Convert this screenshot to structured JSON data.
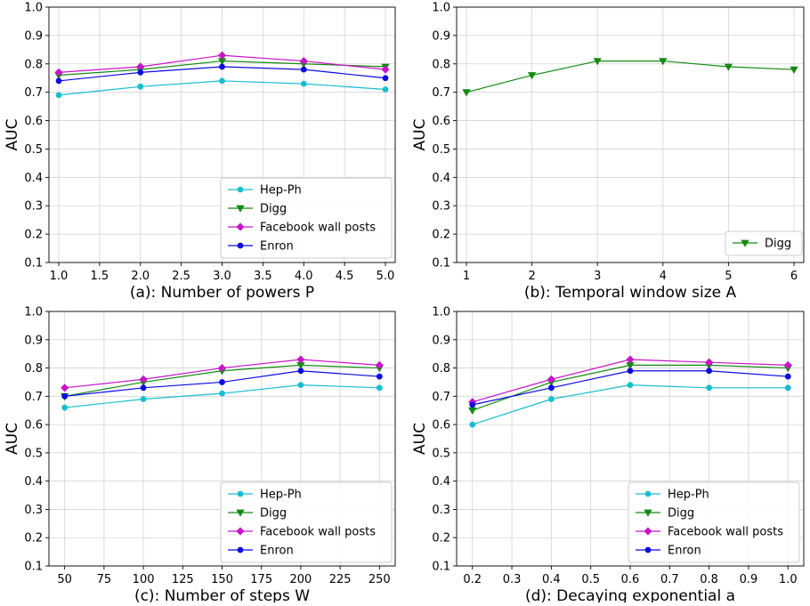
{
  "chart_data": [
    {
      "type": "line",
      "panel": "a",
      "xlabel": "(a): Number of powers P",
      "ylabel": "AUC",
      "x": [
        1.0,
        2.0,
        3.0,
        4.0,
        5.0
      ],
      "xlim": [
        0.88,
        5.12
      ],
      "ylim": [
        0.1,
        1.0
      ],
      "xticks": [
        1.0,
        1.5,
        2.0,
        2.5,
        3.0,
        3.5,
        4.0,
        4.5,
        5.0
      ],
      "xtick_labels": [
        "1.0",
        "1.5",
        "2.0",
        "2.5",
        "3.0",
        "3.5",
        "4.0",
        "4.5",
        "5.0"
      ],
      "yticks": [
        0.1,
        0.2,
        0.3,
        0.4,
        0.5,
        0.6,
        0.7,
        0.8,
        0.9,
        1.0
      ],
      "ytick_labels": [
        "0.1",
        "0.2",
        "0.3",
        "0.4",
        "0.5",
        "0.6",
        "0.7",
        "0.8",
        "0.9",
        "1.0"
      ],
      "grid": true,
      "legend_position": "lower-right",
      "series": [
        {
          "name": "Hep-Ph",
          "color": "#17becf",
          "marker": "circle",
          "values": [
            0.69,
            0.72,
            0.74,
            0.73,
            0.71
          ]
        },
        {
          "name": "Digg",
          "color": "#138a13",
          "marker": "triangle-down",
          "values": [
            0.76,
            0.78,
            0.81,
            0.8,
            0.79
          ]
        },
        {
          "name": "Facebook wall posts",
          "color": "#c715c7",
          "marker": "diamond",
          "values": [
            0.77,
            0.79,
            0.83,
            0.81,
            0.78
          ]
        },
        {
          "name": "Enron",
          "color": "#0a0ae0",
          "marker": "circle",
          "values": [
            0.74,
            0.77,
            0.79,
            0.78,
            0.75
          ]
        }
      ]
    },
    {
      "type": "line",
      "panel": "b",
      "xlabel": "(b): Temporal window size A",
      "ylabel": "AUC",
      "x": [
        1,
        2,
        3,
        4,
        5,
        6
      ],
      "xlim": [
        0.85,
        6.15
      ],
      "ylim": [
        0.1,
        1.0
      ],
      "xticks": [
        1,
        2,
        3,
        4,
        5,
        6
      ],
      "xtick_labels": [
        "1",
        "2",
        "3",
        "4",
        "5",
        "6"
      ],
      "yticks": [
        0.1,
        0.2,
        0.3,
        0.4,
        0.5,
        0.6,
        0.7,
        0.8,
        0.9,
        1.0
      ],
      "ytick_labels": [
        "0.1",
        "0.2",
        "0.3",
        "0.4",
        "0.5",
        "0.6",
        "0.7",
        "0.8",
        "0.9",
        "1.0"
      ],
      "grid": true,
      "legend_position": "lower-right",
      "series": [
        {
          "name": "Digg",
          "color": "#138a13",
          "marker": "triangle-down",
          "values": [
            0.7,
            0.76,
            0.81,
            0.81,
            0.79,
            0.78
          ]
        }
      ]
    },
    {
      "type": "line",
      "panel": "c",
      "xlabel": "(c): Number of steps W",
      "ylabel": "AUC",
      "x": [
        50,
        100,
        150,
        200,
        250
      ],
      "xlim": [
        40,
        260
      ],
      "ylim": [
        0.1,
        1.0
      ],
      "xticks": [
        50,
        75,
        100,
        125,
        150,
        175,
        200,
        225,
        250
      ],
      "xtick_labels": [
        "50",
        "75",
        "100",
        "125",
        "150",
        "175",
        "200",
        "225",
        "250"
      ],
      "yticks": [
        0.1,
        0.2,
        0.3,
        0.4,
        0.5,
        0.6,
        0.7,
        0.8,
        0.9,
        1.0
      ],
      "ytick_labels": [
        "0.1",
        "0.2",
        "0.3",
        "0.4",
        "0.5",
        "0.6",
        "0.7",
        "0.8",
        "0.9",
        "1.0"
      ],
      "grid": true,
      "legend_position": "lower-right",
      "series": [
        {
          "name": "Hep-Ph",
          "color": "#17becf",
          "marker": "circle",
          "values": [
            0.66,
            0.69,
            0.71,
            0.74,
            0.73
          ]
        },
        {
          "name": "Digg",
          "color": "#138a13",
          "marker": "triangle-down",
          "values": [
            0.7,
            0.75,
            0.79,
            0.81,
            0.8
          ]
        },
        {
          "name": "Facebook wall posts",
          "color": "#c715c7",
          "marker": "diamond",
          "values": [
            0.73,
            0.76,
            0.8,
            0.83,
            0.81
          ]
        },
        {
          "name": "Enron",
          "color": "#0a0ae0",
          "marker": "circle",
          "values": [
            0.7,
            0.73,
            0.75,
            0.79,
            0.77
          ]
        }
      ]
    },
    {
      "type": "line",
      "panel": "d",
      "xlabel": "(d): Decaying exponential a",
      "ylabel": "AUC",
      "x": [
        0.2,
        0.4,
        0.6,
        0.8,
        1.0
      ],
      "xlim": [
        0.16,
        1.04
      ],
      "ylim": [
        0.1,
        1.0
      ],
      "xticks": [
        0.2,
        0.3,
        0.4,
        0.5,
        0.6,
        0.7,
        0.8,
        0.9,
        1.0
      ],
      "xtick_labels": [
        "0.2",
        "0.3",
        "0.4",
        "0.5",
        "0.6",
        "0.7",
        "0.8",
        "0.9",
        "1.0"
      ],
      "yticks": [
        0.1,
        0.2,
        0.3,
        0.4,
        0.5,
        0.6,
        0.7,
        0.8,
        0.9,
        1.0
      ],
      "ytick_labels": [
        "0.1",
        "0.2",
        "0.3",
        "0.4",
        "0.5",
        "0.6",
        "0.7",
        "0.8",
        "0.9",
        "1.0"
      ],
      "grid": true,
      "legend_position": "lower-right",
      "series": [
        {
          "name": "Hep-Ph",
          "color": "#17becf",
          "marker": "circle",
          "values": [
            0.6,
            0.69,
            0.74,
            0.73,
            0.73
          ]
        },
        {
          "name": "Digg",
          "color": "#138a13",
          "marker": "triangle-down",
          "values": [
            0.65,
            0.75,
            0.81,
            0.81,
            0.8
          ]
        },
        {
          "name": "Facebook wall posts",
          "color": "#c715c7",
          "marker": "diamond",
          "values": [
            0.68,
            0.76,
            0.83,
            0.82,
            0.81
          ]
        },
        {
          "name": "Enron",
          "color": "#0a0ae0",
          "marker": "circle",
          "values": [
            0.67,
            0.73,
            0.79,
            0.79,
            0.77
          ]
        }
      ]
    }
  ]
}
